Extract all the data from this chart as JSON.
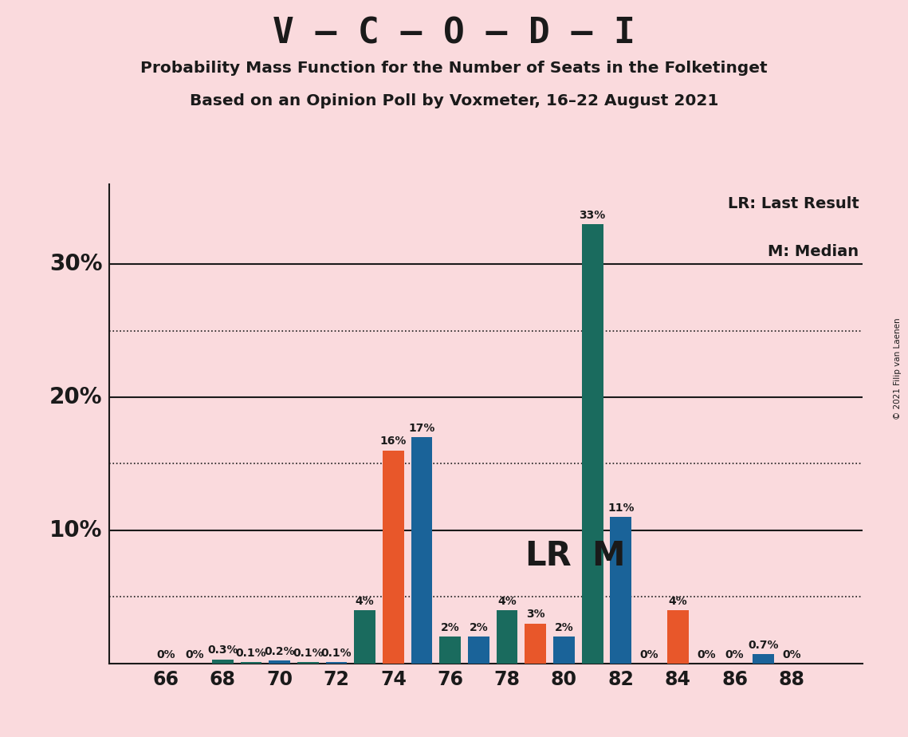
{
  "title_main": "V – C – O – D – I",
  "title_sub1": "Probability Mass Function for the Number of Seats in the Folketinget",
  "title_sub2": "Based on an Opinion Poll by Voxmeter, 16–22 August 2021",
  "copyright": "© 2021 Filip van Laenen",
  "legend_lr": "LR: Last Result",
  "legend_m": "M: Median",
  "lr_label": "LR",
  "m_label": "M",
  "lr_seat": 80,
  "m_seat": 81,
  "background_color": "#fadadd",
  "bar_color_teal": "#1a6b5e",
  "bar_color_orange": "#e8572a",
  "bar_color_blue": "#1a6399",
  "ylim": [
    0,
    36
  ],
  "seats": [
    66,
    67,
    68,
    69,
    70,
    71,
    72,
    73,
    74,
    75,
    76,
    77,
    78,
    79,
    80,
    81,
    82,
    83,
    84,
    85,
    86,
    87,
    88
  ],
  "pmf": [
    0.0,
    0.0,
    0.3,
    0.1,
    0.2,
    0.1,
    0.1,
    4.0,
    16.0,
    17.0,
    2.0,
    2.0,
    4.0,
    3.0,
    2.0,
    33.0,
    11.0,
    0.0,
    4.0,
    0.0,
    0.0,
    0.7,
    0.0
  ],
  "bar_colors": [
    "#1a6b5e",
    "#1a6b5e",
    "#1a6b5e",
    "#1a6b5e",
    "#1a6399",
    "#1a6b5e",
    "#1a6399",
    "#1a6b5e",
    "#e8572a",
    "#1a6399",
    "#1a6b5e",
    "#1a6399",
    "#1a6b5e",
    "#e8572a",
    "#1a6399",
    "#1a6b5e",
    "#1a6399",
    "#1a6b5e",
    "#e8572a",
    "#1a6b5e",
    "#1a6b5e",
    "#1a6399",
    "#1a6b5e"
  ],
  "bar_labels": [
    "0%",
    "0%",
    "0.3%",
    "0.1%",
    "0.2%",
    "0.1%",
    "0.1%",
    "4%",
    "16%",
    "17%",
    "2%",
    "2%",
    "4%",
    "3%",
    "2%",
    "33%",
    "11%",
    "0%",
    "4%",
    "0%",
    "0%",
    "0.7%",
    "0%"
  ],
  "xtick_seats": [
    66,
    68,
    70,
    72,
    74,
    76,
    78,
    80,
    82,
    84,
    86,
    88
  ],
  "solid_hlines": [
    10,
    20,
    30
  ],
  "dotted_hlines": [
    5,
    15,
    25
  ],
  "ytick_positions": [
    10,
    20,
    30
  ],
  "ytick_labels": [
    "10%",
    "20%",
    "30%"
  ],
  "bar_label_fontsize": 10,
  "bar_width": 0.75,
  "lr_m_fontsize": 30
}
